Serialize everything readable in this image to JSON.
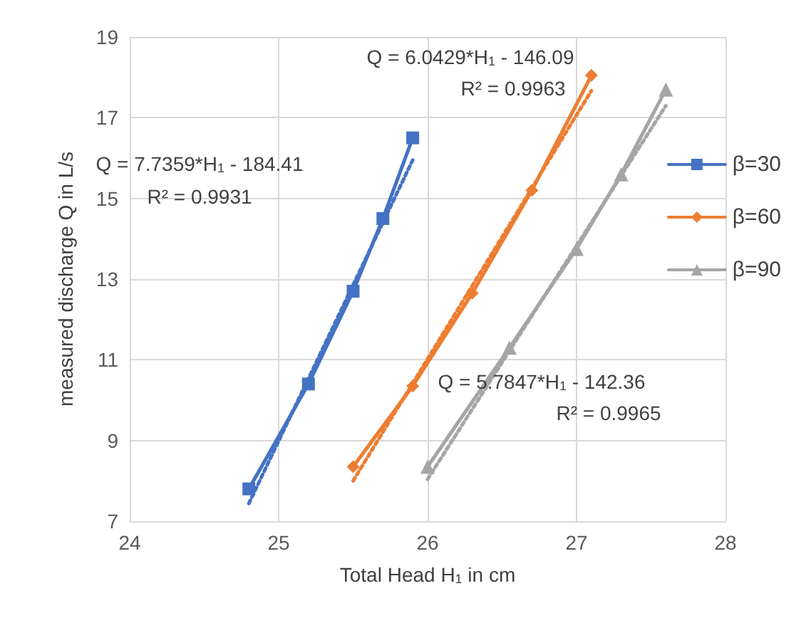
{
  "chart_data": {
    "type": "line",
    "xlabel": "Total Head H$_{1}$ in cm",
    "ylabel": "measured discharge Q in L/s",
    "xlim": [
      24,
      28
    ],
    "xticks": [
      24,
      25,
      26,
      27,
      28
    ],
    "ylim": [
      7,
      19
    ],
    "yticks": [
      7,
      9,
      11,
      13,
      15,
      17,
      19
    ],
    "grid": true,
    "legend": "right",
    "series": [
      {
        "name": "β=30",
        "color": "#4472c4",
        "marker": "square",
        "x": [
          24.8,
          25.2,
          25.5,
          25.7,
          25.9
        ],
        "values": [
          7.8,
          10.4,
          12.7,
          14.5,
          16.5
        ]
      },
      {
        "name": "β=60",
        "color": "#ed7d31",
        "marker": "diamond",
        "x": [
          25.5,
          25.9,
          26.3,
          26.7,
          27.1
        ],
        "values": [
          8.35,
          10.35,
          12.65,
          15.2,
          18.05
        ]
      },
      {
        "name": "β=90",
        "color": "#a5a5a5",
        "marker": "triangle",
        "x": [
          26.0,
          26.55,
          27.0,
          27.3,
          27.6
        ],
        "values": [
          8.35,
          11.3,
          13.75,
          15.6,
          17.7
        ]
      },
      {
        "color": "#4472c4",
        "line_style": "dotted",
        "marker": "none",
        "x": [
          24.8,
          25.9
        ],
        "values": [
          7.44,
          15.95
        ]
      },
      {
        "color": "#ed7d31",
        "line_style": "dotted",
        "marker": "none",
        "x": [
          25.5,
          27.1
        ],
        "values": [
          8.0,
          17.67
        ]
      },
      {
        "color": "#a5a5a5",
        "line_style": "dotted",
        "marker": "none",
        "x": [
          26.0,
          27.6
        ],
        "values": [
          8.04,
          17.3
        ]
      }
    ],
    "annotations": [
      "Q = 7.7359*H$_{1}$ - 184.41",
      "R² = 0.9931",
      "Q = 6.0429*H$_{1}$ - 146.09",
      "R² = 0.9963",
      "Q = 5.7847*H$_{1}$ - 142.36",
      "R² = 0.9965"
    ]
  }
}
